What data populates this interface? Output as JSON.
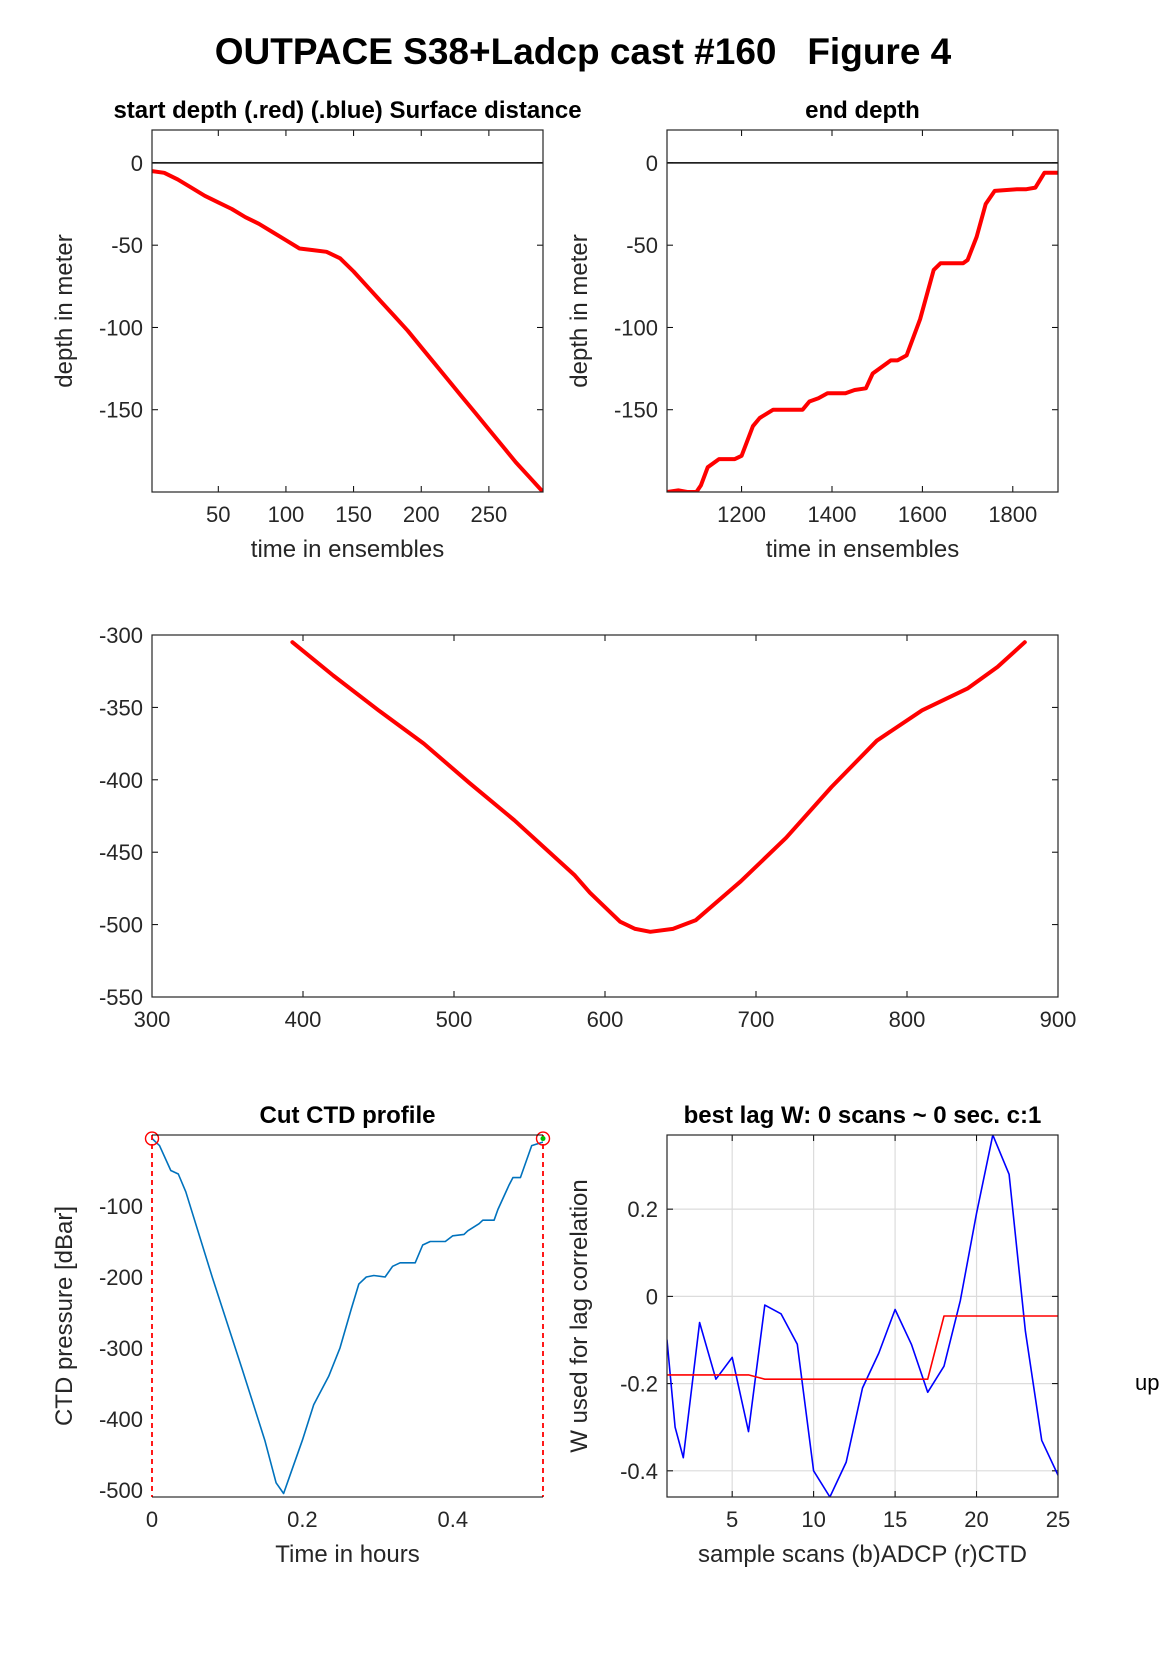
{
  "figure": {
    "title": "OUTPACE S38+Ladcp cast #160   Figure 4",
    "side_label": "up"
  },
  "chart_data": [
    {
      "id": "start",
      "type": "line",
      "title": "start depth (.red) (.blue) Surface distance",
      "xlabel": "time in ensembles",
      "ylabel": "depth in meter",
      "xlim": [
        1,
        290
      ],
      "ylim": [
        -200,
        20
      ],
      "xticks": [
        50,
        100,
        150,
        200,
        250
      ],
      "yticks": [
        0,
        -50,
        -100,
        -150
      ],
      "grid": false,
      "box_ticks": "both",
      "hlines": [
        {
          "y": 0,
          "color": "#000000"
        }
      ],
      "series": [
        {
          "color": "#ff0000",
          "width": 4,
          "x": [
            1,
            10,
            20,
            30,
            40,
            50,
            60,
            70,
            80,
            90,
            100,
            110,
            120,
            130,
            140,
            150,
            160,
            170,
            180,
            190,
            200,
            210,
            220,
            230,
            240,
            250,
            260,
            270,
            280,
            290
          ],
          "y": [
            -5,
            -6,
            -10,
            -15,
            -20,
            -24,
            -28,
            -33,
            -37,
            -42,
            -47,
            -52,
            -53,
            -54,
            -58,
            -66,
            -75,
            -84,
            -93,
            -102,
            -112,
            -122,
            -132,
            -142,
            -152,
            -162,
            -172,
            -182,
            -191,
            -200
          ]
        }
      ]
    },
    {
      "id": "end",
      "type": "line",
      "title": "end depth",
      "xlabel": "time in ensembles",
      "ylabel": "depth in meter",
      "xlim": [
        1035,
        1900
      ],
      "ylim": [
        -200,
        20
      ],
      "xticks": [
        1200,
        1400,
        1600,
        1800
      ],
      "yticks": [
        0,
        -50,
        -100,
        -150
      ],
      "grid": false,
      "box_ticks": "both",
      "hlines": [
        {
          "y": 0,
          "color": "#000000"
        }
      ],
      "series": [
        {
          "color": "#ff0000",
          "width": 4,
          "x": [
            1035,
            1060,
            1080,
            1100,
            1110,
            1125,
            1150,
            1185,
            1200,
            1225,
            1240,
            1270,
            1300,
            1335,
            1350,
            1370,
            1390,
            1430,
            1450,
            1475,
            1490,
            1530,
            1545,
            1565,
            1595,
            1625,
            1640,
            1690,
            1700,
            1720,
            1740,
            1760,
            1810,
            1830,
            1850,
            1870,
            1900
          ],
          "y": [
            -200,
            -199,
            -200,
            -200,
            -196,
            -185,
            -180,
            -180,
            -178,
            -160,
            -155,
            -150,
            -150,
            -150,
            -145,
            -143,
            -140,
            -140,
            -138,
            -137,
            -128,
            -120,
            -120,
            -117,
            -95,
            -65,
            -61,
            -61,
            -59,
            -45,
            -25,
            -17,
            -16,
            -16,
            -15,
            -6,
            -6
          ]
        }
      ]
    },
    {
      "id": "middle",
      "type": "line",
      "title": "",
      "xlabel": "",
      "ylabel": "",
      "xlim": [
        300,
        900
      ],
      "ylim": [
        -550,
        -300
      ],
      "xticks": [
        300,
        400,
        500,
        600,
        700,
        800,
        900
      ],
      "yticks": [
        -300,
        -350,
        -400,
        -450,
        -500,
        -550
      ],
      "grid": false,
      "box_ticks": "both",
      "series": [
        {
          "color": "#ff0000",
          "width": 4,
          "x": [
            393,
            420,
            450,
            480,
            510,
            540,
            560,
            580,
            590,
            610,
            620,
            630,
            645,
            660,
            690,
            720,
            750,
            780,
            810,
            840,
            860,
            878
          ],
          "y": [
            -305,
            -328,
            -352,
            -375,
            -402,
            -428,
            -447,
            -466,
            -478,
            -498,
            -503,
            -505,
            -503,
            -497,
            -470,
            -440,
            -405,
            -373,
            -352,
            -337,
            -322,
            -305
          ]
        }
      ]
    },
    {
      "id": "ctd",
      "type": "line",
      "title": "Cut CTD profile",
      "xlabel": "Time in hours",
      "ylabel": "CTD pressure [dBar]",
      "xlim": [
        0,
        0.52
      ],
      "ylim": [
        -510,
        0
      ],
      "xticks": [
        0,
        0.2,
        0.4
      ],
      "yticks": [
        -100,
        -200,
        -300,
        -400,
        -500
      ],
      "grid": false,
      "box_ticks": "none",
      "vlines": [
        {
          "x": 0,
          "color": "#ff0000",
          "dash": "5,4"
        },
        {
          "x": 0.52,
          "color": "#ff0000",
          "dash": "5,4"
        }
      ],
      "markers": [
        {
          "x": 0,
          "y": -5,
          "shape": "circle",
          "color": "#ff0000"
        },
        {
          "x": 0.52,
          "y": -5,
          "shape": "circle",
          "color": "#ff0000"
        },
        {
          "x": 0.52,
          "y": -5,
          "shape": "dot",
          "color": "#00c000"
        }
      ],
      "series": [
        {
          "color": "#0072bd",
          "width": 1.6,
          "x": [
            0,
            0.01,
            0.025,
            0.035,
            0.045,
            0.08,
            0.12,
            0.15,
            0.165,
            0.175,
            0.185,
            0.2,
            0.215,
            0.235,
            0.25,
            0.265,
            0.275,
            0.285,
            0.295,
            0.31,
            0.32,
            0.33,
            0.35,
            0.36,
            0.37,
            0.39,
            0.4,
            0.415,
            0.42,
            0.435,
            0.44,
            0.455,
            0.46,
            0.475,
            0.48,
            0.49,
            0.505,
            0.52
          ],
          "y": [
            -5,
            -15,
            -50,
            -55,
            -80,
            -200,
            -330,
            -430,
            -490,
            -505,
            -475,
            -430,
            -380,
            -340,
            -300,
            -245,
            -210,
            -200,
            -198,
            -200,
            -185,
            -180,
            -180,
            -155,
            -150,
            -150,
            -142,
            -140,
            -135,
            -125,
            -120,
            -120,
            -105,
            -70,
            -60,
            -60,
            -15,
            -10
          ]
        }
      ]
    },
    {
      "id": "lag",
      "type": "line",
      "title": "best lag W: 0 scans ~ 0 sec.  c:1",
      "xlabel": "sample scans (b)ADCP (r)CTD",
      "ylabel": "W used for lag correlation",
      "xlim": [
        1,
        25
      ],
      "ylim": [
        -0.46,
        0.37
      ],
      "xticks": [
        5,
        10,
        15,
        20,
        25
      ],
      "yticks": [
        0.2,
        0,
        -0.2,
        -0.4
      ],
      "grid": true,
      "box_ticks": "both",
      "series": [
        {
          "color": "#0000ff",
          "width": 1.6,
          "x": [
            1,
            1.5,
            2,
            3,
            4,
            5,
            6,
            7,
            8,
            9,
            10,
            11,
            12,
            13,
            14,
            15,
            16,
            17,
            18,
            19,
            20,
            21,
            22,
            23,
            24,
            25
          ],
          "y": [
            -0.1,
            -0.3,
            -0.37,
            -0.06,
            -0.19,
            -0.14,
            -0.31,
            -0.02,
            -0.04,
            -0.11,
            -0.4,
            -0.46,
            -0.38,
            -0.21,
            -0.13,
            -0.03,
            -0.11,
            -0.22,
            -0.16,
            -0.01,
            0.19,
            0.37,
            0.28,
            -0.08,
            -0.33,
            -0.41
          ]
        },
        {
          "color": "#ff0000",
          "width": 1.6,
          "x": [
            1,
            6,
            7,
            17,
            18,
            25
          ],
          "y": [
            -0.18,
            -0.18,
            -0.19,
            -0.19,
            -0.045,
            -0.045
          ]
        }
      ]
    }
  ]
}
